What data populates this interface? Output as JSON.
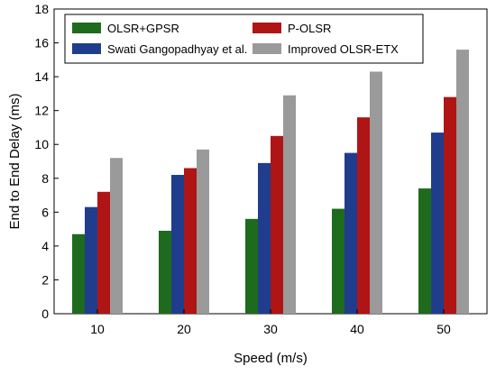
{
  "chart_data": {
    "type": "bar",
    "categories": [
      "10",
      "20",
      "30",
      "40",
      "50"
    ],
    "series": [
      {
        "name": "OLSR+GPSR",
        "color": "#1e6b1e",
        "values": [
          4.7,
          4.9,
          5.6,
          6.2,
          7.4
        ]
      },
      {
        "name": "Swati Gangopadhyay et al.",
        "color": "#1f3d8c",
        "values": [
          6.3,
          8.2,
          8.9,
          9.5,
          10.7
        ]
      },
      {
        "name": "P-OLSR",
        "color": "#b01515",
        "values": [
          7.2,
          8.6,
          10.5,
          11.6,
          12.8
        ]
      },
      {
        "name": "Improved OLSR-ETX",
        "color": "#9a9a9a",
        "values": [
          9.2,
          9.7,
          12.9,
          14.3,
          15.6
        ]
      }
    ],
    "xlabel": "Speed (m/s)",
    "ylabel": "End to End Delay (ms)",
    "ylim": [
      0,
      18
    ],
    "yticks": [
      0,
      2,
      4,
      6,
      8,
      10,
      12,
      14,
      16,
      18
    ],
    "grid": false,
    "legend": {
      "placement": "top-left",
      "columns": 2
    }
  }
}
